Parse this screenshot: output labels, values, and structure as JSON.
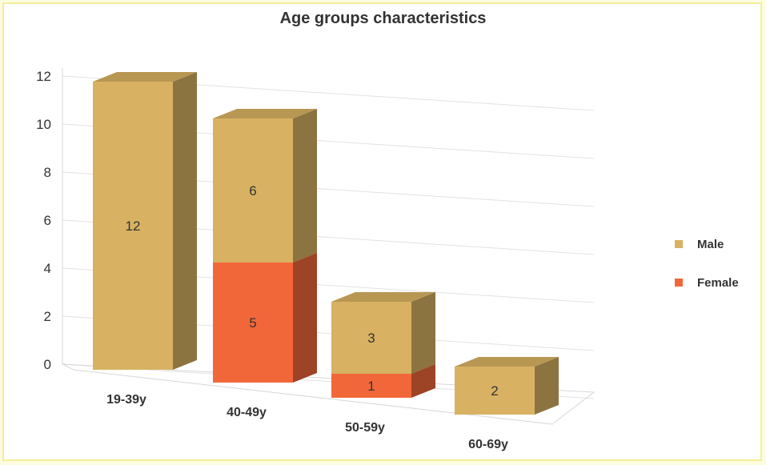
{
  "chart_data": {
    "type": "bar",
    "stacked": true,
    "three_d": true,
    "title": "Age groups characteristics",
    "categories": [
      "19-39y",
      "40-49y",
      "50-59y",
      "60-69y"
    ],
    "series": [
      {
        "name": "Male",
        "values": [
          12,
          6,
          3,
          2
        ],
        "color": "#d8b262"
      },
      {
        "name": "Female",
        "values": [
          0,
          5,
          1,
          0
        ],
        "color": "#f2673a"
      }
    ],
    "yticks": [
      "0",
      "2",
      "4",
      "6",
      "8",
      "10",
      "12"
    ],
    "ylim": [
      0,
      12
    ],
    "grid": true,
    "legend": "right"
  }
}
